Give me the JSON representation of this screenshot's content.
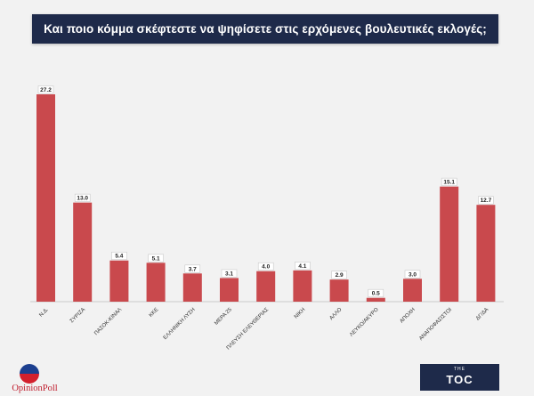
{
  "chart_data": {
    "type": "bar",
    "title": "Και ποιο κόμμα σκέφτεστε να ψηφίσετε  στις ερχόμενες βουλευτικές εκλογές;",
    "categories": [
      "Ν.Δ.",
      "ΣΥΡΙΖΑ",
      "ΠΑΣΟΚ-ΚΙΝΑΛ",
      "ΚΚΕ",
      "ΕΛΛΗΝΙΚΗ ΛΥΣΗ",
      "ΜΕΡΑ 25",
      "ΠΛΕΥΣΗ ΕΛΕΥΘΕΡΙΑΣ",
      "ΝΙΚΗ",
      "ΑΛΛΟ",
      "ΛΕΥΚΟ/ΑΚΥΡΟ",
      "ΑΠΟΧΗ",
      "ΑΝΑΠΟΦΑΣΙΣΤΟΙ",
      "ΔΓ/ΔΑ"
    ],
    "values": [
      27.2,
      13.0,
      5.4,
      5.1,
      3.7,
      3.1,
      4.0,
      4.1,
      2.9,
      0.5,
      3.0,
      15.1,
      12.7
    ],
    "value_labels": [
      "27.2",
      "13.0",
      "5.4",
      "5.1",
      "3.7",
      "3.1",
      "4.0",
      "4.1",
      "2.9",
      "0.5",
      "3.0",
      "15.1",
      "12.7"
    ],
    "xlabel": "",
    "ylabel": "",
    "ylim": [
      0,
      27.2
    ],
    "grid": false,
    "bar_color": "#c9494d"
  },
  "logos": {
    "left_brand": "OpinionPoll",
    "right_mark": "TOC",
    "right_small": "THE"
  },
  "colors": {
    "banner": "#1e2a4a",
    "background": "#f2f2f2"
  }
}
